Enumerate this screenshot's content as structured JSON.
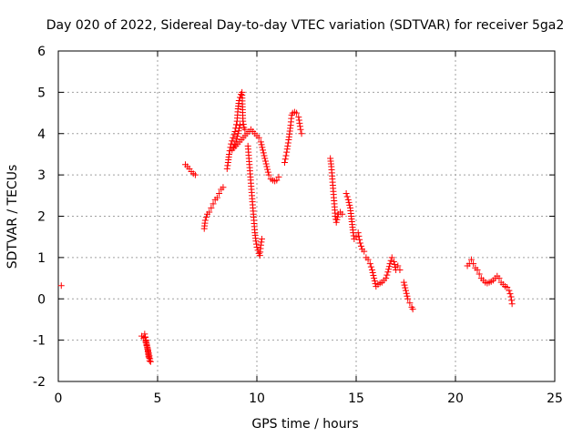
{
  "chart_data": {
    "type": "scatter",
    "title": "Day 020 of 2022, Sidereal Day-to-day VTEC variation (SDTVAR) for receiver 5ga2",
    "xlabel": "GPS time / hours",
    "ylabel": "SDTVAR / TECUs",
    "xlim": [
      0,
      25
    ],
    "ylim": [
      -2,
      6
    ],
    "xticks": [
      0,
      5,
      10,
      15,
      20,
      25
    ],
    "yticks": [
      -2,
      -1,
      0,
      1,
      2,
      3,
      4,
      5,
      6
    ],
    "grid": true,
    "marker": "+",
    "color": "#ff0000",
    "series": [
      {
        "name": "SDTVAR",
        "segments": [
          [
            [
              0.15,
              0.32
            ]
          ],
          [
            [
              4.2,
              -0.9
            ],
            [
              4.3,
              -0.95
            ],
            [
              4.4,
              -1.05
            ],
            [
              4.5,
              -1.2
            ],
            [
              4.55,
              -1.4
            ],
            [
              4.6,
              -1.5
            ],
            [
              4.35,
              -0.85
            ],
            [
              4.45,
              -1.1
            ],
            [
              4.65,
              -1.52
            ]
          ],
          [
            [
              6.4,
              3.25
            ],
            [
              6.5,
              3.2
            ],
            [
              6.6,
              3.15
            ],
            [
              6.7,
              3.08
            ],
            [
              6.8,
              3.03
            ],
            [
              6.9,
              3.0
            ]
          ],
          [
            [
              7.35,
              1.7
            ],
            [
              7.4,
              1.9
            ],
            [
              7.5,
              2.05
            ],
            [
              7.6,
              2.1
            ],
            [
              7.7,
              2.2
            ],
            [
              7.8,
              2.3
            ],
            [
              7.9,
              2.4
            ],
            [
              8.0,
              2.45
            ],
            [
              8.1,
              2.55
            ],
            [
              8.2,
              2.65
            ],
            [
              8.3,
              2.7
            ]
          ],
          [
            [
              8.5,
              3.15
            ],
            [
              8.55,
              3.3
            ],
            [
              8.6,
              3.5
            ],
            [
              8.7,
              3.75
            ],
            [
              8.8,
              3.9
            ],
            [
              8.9,
              4.05
            ],
            [
              9.0,
              4.3
            ],
            [
              9.05,
              4.6
            ],
            [
              9.1,
              4.8
            ],
            [
              9.2,
              4.95
            ],
            [
              9.25,
              5.0
            ],
            [
              9.3,
              4.3
            ],
            [
              9.35,
              4.15
            ],
            [
              9.4,
              4.1
            ],
            [
              9.5,
              4.0
            ],
            [
              8.75,
              3.6
            ],
            [
              8.95,
              3.8
            ],
            [
              9.15,
              4.2
            ]
          ],
          [
            [
              9.55,
              3.7
            ],
            [
              9.6,
              3.4
            ],
            [
              9.65,
              3.1
            ],
            [
              9.7,
              2.8
            ],
            [
              9.75,
              2.5
            ],
            [
              9.8,
              2.2
            ],
            [
              9.85,
              1.9
            ],
            [
              9.9,
              1.6
            ],
            [
              9.95,
              1.4
            ],
            [
              10.0,
              1.25
            ],
            [
              10.1,
              1.1
            ],
            [
              10.15,
              1.05
            ],
            [
              10.2,
              1.3
            ],
            [
              10.25,
              1.45
            ]
          ],
          [
            [
              9.6,
              4.05
            ],
            [
              9.7,
              4.1
            ],
            [
              9.8,
              4.05
            ],
            [
              9.9,
              4.0
            ],
            [
              10.0,
              3.95
            ],
            [
              10.1,
              3.9
            ],
            [
              10.2,
              3.8
            ],
            [
              10.3,
              3.6
            ],
            [
              10.4,
              3.4
            ],
            [
              10.5,
              3.2
            ],
            [
              10.6,
              3.0
            ],
            [
              10.7,
              2.9
            ],
            [
              10.8,
              2.87
            ],
            [
              10.9,
              2.85
            ],
            [
              11.0,
              2.87
            ],
            [
              11.1,
              2.95
            ]
          ],
          [
            [
              11.4,
              3.3
            ],
            [
              11.5,
              3.55
            ],
            [
              11.6,
              3.85
            ],
            [
              11.7,
              4.2
            ],
            [
              11.75,
              4.45
            ],
            [
              11.8,
              4.5
            ],
            [
              11.9,
              4.52
            ],
            [
              12.0,
              4.5
            ],
            [
              12.1,
              4.4
            ],
            [
              12.15,
              4.25
            ],
            [
              12.2,
              4.1
            ],
            [
              12.25,
              4.0
            ]
          ],
          [
            [
              13.7,
              3.4
            ],
            [
              13.75,
              3.2
            ],
            [
              13.8,
              2.9
            ],
            [
              13.85,
              2.6
            ],
            [
              13.9,
              2.3
            ],
            [
              13.95,
              2.0
            ],
            [
              14.0,
              1.85
            ],
            [
              14.1,
              2.05
            ],
            [
              14.2,
              2.1
            ],
            [
              14.3,
              2.05
            ]
          ],
          [
            [
              14.5,
              2.55
            ],
            [
              14.6,
              2.4
            ],
            [
              14.7,
              2.2
            ],
            [
              14.75,
              2.0
            ],
            [
              14.8,
              1.8
            ],
            [
              14.85,
              1.6
            ],
            [
              14.9,
              1.45
            ],
            [
              15.0,
              1.5
            ],
            [
              15.1,
              1.6
            ],
            [
              15.2,
              1.35
            ],
            [
              15.3,
              1.2
            ],
            [
              15.4,
              1.15
            ]
          ],
          [
            [
              15.5,
              1.0
            ],
            [
              15.6,
              0.95
            ],
            [
              15.7,
              0.85
            ],
            [
              15.8,
              0.7
            ],
            [
              15.9,
              0.5
            ],
            [
              16.0,
              0.3
            ],
            [
              16.1,
              0.35
            ],
            [
              16.2,
              0.38
            ],
            [
              16.3,
              0.4
            ],
            [
              16.4,
              0.45
            ],
            [
              16.5,
              0.5
            ],
            [
              16.6,
              0.65
            ],
            [
              16.7,
              0.85
            ],
            [
              16.8,
              1.0
            ],
            [
              16.9,
              0.9
            ],
            [
              17.0,
              0.7
            ],
            [
              17.1,
              0.8
            ],
            [
              17.2,
              0.7
            ]
          ],
          [
            [
              17.4,
              0.4
            ],
            [
              17.5,
              0.2
            ],
            [
              17.6,
              0.0
            ],
            [
              17.7,
              -0.1
            ],
            [
              17.8,
              -0.2
            ],
            [
              17.85,
              -0.25
            ]
          ],
          [
            [
              20.6,
              0.8
            ],
            [
              20.7,
              0.85
            ],
            [
              20.8,
              0.95
            ],
            [
              20.9,
              0.85
            ],
            [
              21.0,
              0.75
            ],
            [
              21.1,
              0.7
            ],
            [
              21.2,
              0.6
            ],
            [
              21.3,
              0.5
            ],
            [
              21.4,
              0.45
            ],
            [
              21.5,
              0.4
            ],
            [
              21.6,
              0.38
            ],
            [
              21.7,
              0.4
            ],
            [
              21.8,
              0.42
            ],
            [
              21.9,
              0.45
            ],
            [
              22.0,
              0.5
            ],
            [
              22.1,
              0.55
            ],
            [
              22.2,
              0.5
            ],
            [
              22.3,
              0.4
            ],
            [
              22.4,
              0.35
            ],
            [
              22.5,
              0.3
            ],
            [
              22.6,
              0.28
            ],
            [
              22.7,
              0.2
            ],
            [
              22.8,
              0.05
            ],
            [
              22.85,
              -0.12
            ]
          ]
        ]
      }
    ]
  }
}
